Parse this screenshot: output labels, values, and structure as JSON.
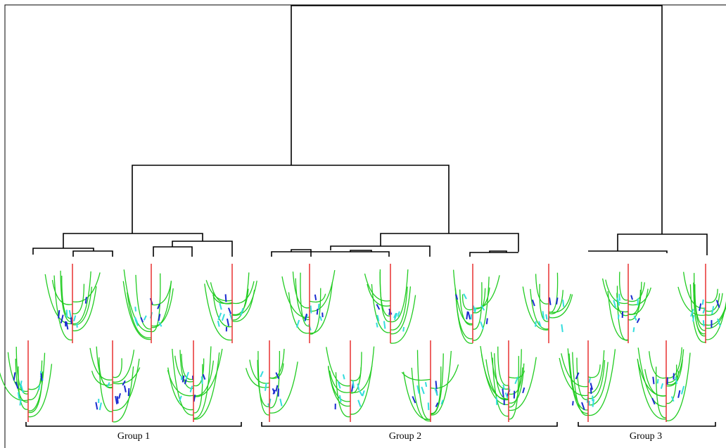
{
  "groups": [
    "Group 1",
    "Group 2",
    "Group 3"
  ]
}
